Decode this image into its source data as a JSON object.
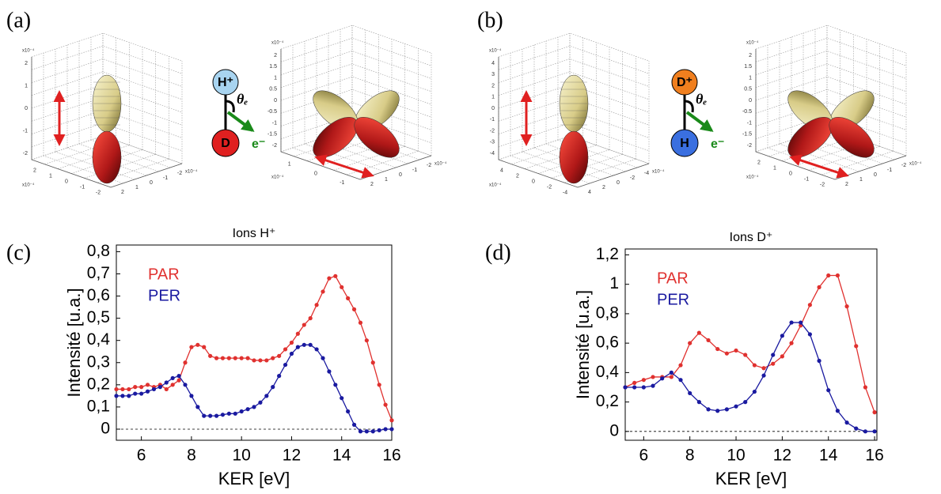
{
  "panels": [
    {
      "label": "(a)",
      "plots": [
        {
          "exponent": "x10⁻⁴",
          "zticks": [
            "2",
            "1",
            "0",
            "-1",
            "-2"
          ],
          "xticks": [
            "2",
            "1",
            "0",
            "-1",
            "-2"
          ],
          "yticks": [
            "2",
            "1",
            "0",
            "-1",
            "-2"
          ]
        },
        {
          "exponent": "x10⁻⁴",
          "zticks": [
            "2",
            "1.5",
            "1",
            "0.5",
            "0",
            "-0.5",
            "-1",
            "-1.5",
            "-2"
          ],
          "xticks": [
            "1",
            "0",
            "-1"
          ],
          "yticks": [
            "2",
            "1",
            "0",
            "-1",
            "-2"
          ]
        }
      ],
      "molecule": {
        "top": "H⁺",
        "bottom": "D",
        "angle": "θₑ",
        "electron": "e⁻"
      }
    },
    {
      "label": "(b)",
      "plots": [
        {
          "exponent": "x10⁻⁴",
          "zticks": [
            "4",
            "3",
            "2",
            "1",
            "0",
            "-1",
            "-2",
            "-3",
            "-4"
          ],
          "xticks": [
            "4",
            "2",
            "0",
            "-2",
            "-4"
          ],
          "yticks": [
            "4",
            "2",
            "0",
            "-2",
            "-4"
          ]
        },
        {
          "exponent": "x10⁻⁴",
          "zticks": [
            "2",
            "1.5",
            "1",
            "0.5",
            "0",
            "-0.5",
            "-1",
            "-1.5",
            "-2"
          ],
          "xticks": [
            "2",
            "1",
            "0",
            "-1",
            "-2"
          ],
          "yticks": [
            "2",
            "1",
            "0",
            "-1",
            "-2"
          ]
        }
      ],
      "molecule": {
        "top": "D⁺",
        "bottom": "H",
        "angle": "θₑ",
        "electron": "e⁻"
      }
    }
  ],
  "chart_data": [
    {
      "type": "line",
      "panel_label": "(c)",
      "title": "Ions H⁺",
      "xlabel": "KER [eV]",
      "ylabel": "Intensité [u.a.]",
      "x": [
        5,
        5.25,
        5.5,
        5.75,
        6,
        6.25,
        6.5,
        6.75,
        7,
        7.25,
        7.5,
        7.75,
        8,
        8.25,
        8.5,
        8.75,
        9,
        9.25,
        9.5,
        9.75,
        10,
        10.25,
        10.5,
        10.75,
        11,
        11.25,
        11.5,
        11.75,
        12,
        12.25,
        12.5,
        12.75,
        13,
        13.25,
        13.5,
        13.75,
        14,
        14.25,
        14.5,
        14.75,
        15,
        15.25,
        15.5,
        15.75,
        16
      ],
      "series": [
        {
          "name": "PAR",
          "color": "#e0312f",
          "values": [
            0.18,
            0.18,
            0.18,
            0.19,
            0.19,
            0.2,
            0.19,
            0.2,
            0.18,
            0.2,
            0.22,
            0.3,
            0.37,
            0.38,
            0.37,
            0.33,
            0.32,
            0.32,
            0.32,
            0.32,
            0.32,
            0.32,
            0.31,
            0.31,
            0.31,
            0.32,
            0.33,
            0.36,
            0.39,
            0.43,
            0.47,
            0.5,
            0.56,
            0.62,
            0.68,
            0.69,
            0.64,
            0.59,
            0.54,
            0.48,
            0.4,
            0.3,
            0.2,
            0.11,
            0.04
          ]
        },
        {
          "name": "PER",
          "color": "#1a1aa0",
          "values": [
            0.15,
            0.15,
            0.15,
            0.16,
            0.16,
            0.17,
            0.18,
            0.19,
            0.21,
            0.23,
            0.24,
            0.2,
            0.15,
            0.1,
            0.06,
            0.06,
            0.06,
            0.065,
            0.07,
            0.07,
            0.08,
            0.09,
            0.1,
            0.12,
            0.15,
            0.19,
            0.24,
            0.29,
            0.34,
            0.37,
            0.38,
            0.38,
            0.36,
            0.32,
            0.26,
            0.2,
            0.14,
            0.08,
            0.02,
            -0.01,
            -0.01,
            -0.01,
            -0.005,
            0,
            0
          ]
        }
      ],
      "xlim": [
        5,
        16
      ],
      "ylim": [
        -0.05,
        0.83
      ],
      "xticks": [
        6,
        8,
        10,
        12,
        14,
        16
      ],
      "yticks": [
        0,
        {
          "value": 0.1,
          "label": "0,1"
        },
        {
          "value": 0.2,
          "label": "0,2"
        },
        {
          "value": 0.3,
          "label": "0,3"
        },
        {
          "value": 0.4,
          "label": "0,4"
        },
        {
          "value": 0.5,
          "label": "0,5"
        },
        {
          "value": 0.6,
          "label": "0,6"
        },
        {
          "value": 0.7,
          "label": "0,7"
        },
        {
          "value": 0.8,
          "label": "0,8"
        }
      ],
      "hline": 0,
      "legend": "upper left"
    },
    {
      "type": "line",
      "panel_label": "(d)",
      "title": "Ions D⁺",
      "xlabel": "KER [eV]",
      "ylabel": "Intensité [u.a.]",
      "x": [
        5.2,
        5.6,
        6,
        6.4,
        6.8,
        7.2,
        7.6,
        8,
        8.4,
        8.8,
        9.2,
        9.6,
        10,
        10.4,
        10.8,
        11.2,
        11.6,
        12,
        12.4,
        12.8,
        13.2,
        13.6,
        14,
        14.4,
        14.8,
        15.2,
        15.6,
        16
      ],
      "series": [
        {
          "name": "PAR",
          "color": "#e0312f",
          "values": [
            0.3,
            0.33,
            0.35,
            0.37,
            0.37,
            0.37,
            0.45,
            0.6,
            0.67,
            0.62,
            0.56,
            0.53,
            0.55,
            0.52,
            0.45,
            0.43,
            0.46,
            0.51,
            0.6,
            0.72,
            0.86,
            0.98,
            1.06,
            1.06,
            0.85,
            0.58,
            0.3,
            0.13
          ]
        },
        {
          "name": "PER",
          "color": "#1a1aa0",
          "values": [
            0.3,
            0.3,
            0.3,
            0.31,
            0.36,
            0.4,
            0.35,
            0.26,
            0.2,
            0.15,
            0.14,
            0.15,
            0.17,
            0.2,
            0.27,
            0.38,
            0.52,
            0.65,
            0.74,
            0.74,
            0.66,
            0.48,
            0.28,
            0.14,
            0.06,
            0.02,
            0,
            0
          ]
        }
      ],
      "xlim": [
        5.2,
        16.1
      ],
      "ylim": [
        -0.06,
        1.24
      ],
      "xticks": [
        6,
        8,
        10,
        12,
        14,
        16
      ],
      "yticks": [
        0,
        {
          "value": 0.2,
          "label": "0,2"
        },
        {
          "value": 0.4,
          "label": "0,4"
        },
        {
          "value": 0.6,
          "label": "0,6"
        },
        {
          "value": 0.8,
          "label": "0,8"
        },
        1,
        {
          "value": 1.2,
          "label": "1,2"
        }
      ],
      "hline": 0,
      "legend": "upper left"
    }
  ]
}
